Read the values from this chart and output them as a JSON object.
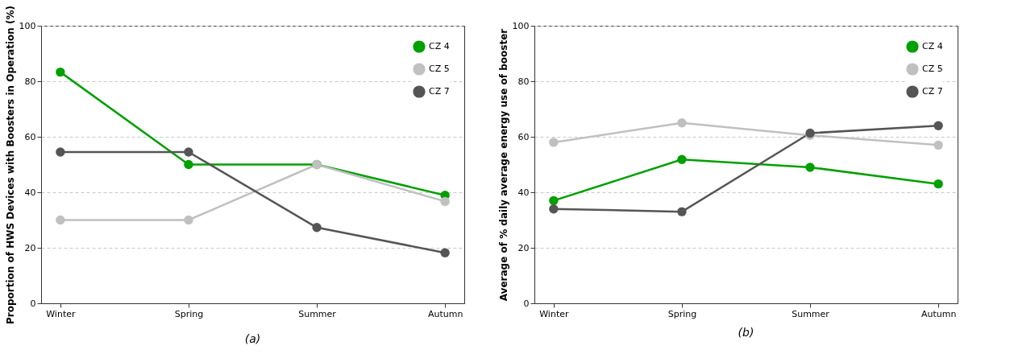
{
  "chart_data": [
    {
      "type": "line",
      "ylabel": "Proportion of HWS Devices with Boosters in Operation (%)",
      "annotations": [
        "(a)"
      ],
      "categories": [
        "Winter",
        "Spring",
        "Summer",
        "Autumn"
      ],
      "series": [
        {
          "name": "CZ 4",
          "color": "#00a000",
          "values": [
            83.3,
            50,
            50,
            38.9
          ]
        },
        {
          "name": "CZ 5",
          "color": "#c0c0c0",
          "values": [
            30,
            30,
            50,
            36.7
          ]
        },
        {
          "name": "CZ 7",
          "color": "#555555",
          "values": [
            54.5,
            54.5,
            27.3,
            18.2
          ]
        }
      ],
      "ylim": [
        0,
        100
      ],
      "yticks": [
        0,
        20,
        40,
        60,
        80,
        100
      ],
      "grid": "y",
      "legend": "top right",
      "marker": "circle",
      "line_style": "solid"
    },
    {
      "type": "line",
      "ylabel": "Average of % daily average energy use of booster",
      "annotations": [
        "(b)"
      ],
      "categories": [
        "Winter",
        "Spring",
        "Summer",
        "Autumn"
      ],
      "series": [
        {
          "name": "CZ 4",
          "color": "#00a000",
          "values": [
            37,
            51.8,
            49,
            43
          ]
        },
        {
          "name": "CZ 5",
          "color": "#c0c0c0",
          "values": [
            58,
            65,
            60.5,
            57
          ]
        },
        {
          "name": "CZ 7",
          "color": "#555555",
          "values": [
            34,
            33,
            61.3,
            64
          ]
        }
      ],
      "ylim": [
        0,
        100
      ],
      "yticks": [
        0,
        20,
        40,
        60,
        80,
        100
      ],
      "grid": "y",
      "legend": "top right",
      "marker": "circle",
      "line_style": "solid"
    }
  ]
}
